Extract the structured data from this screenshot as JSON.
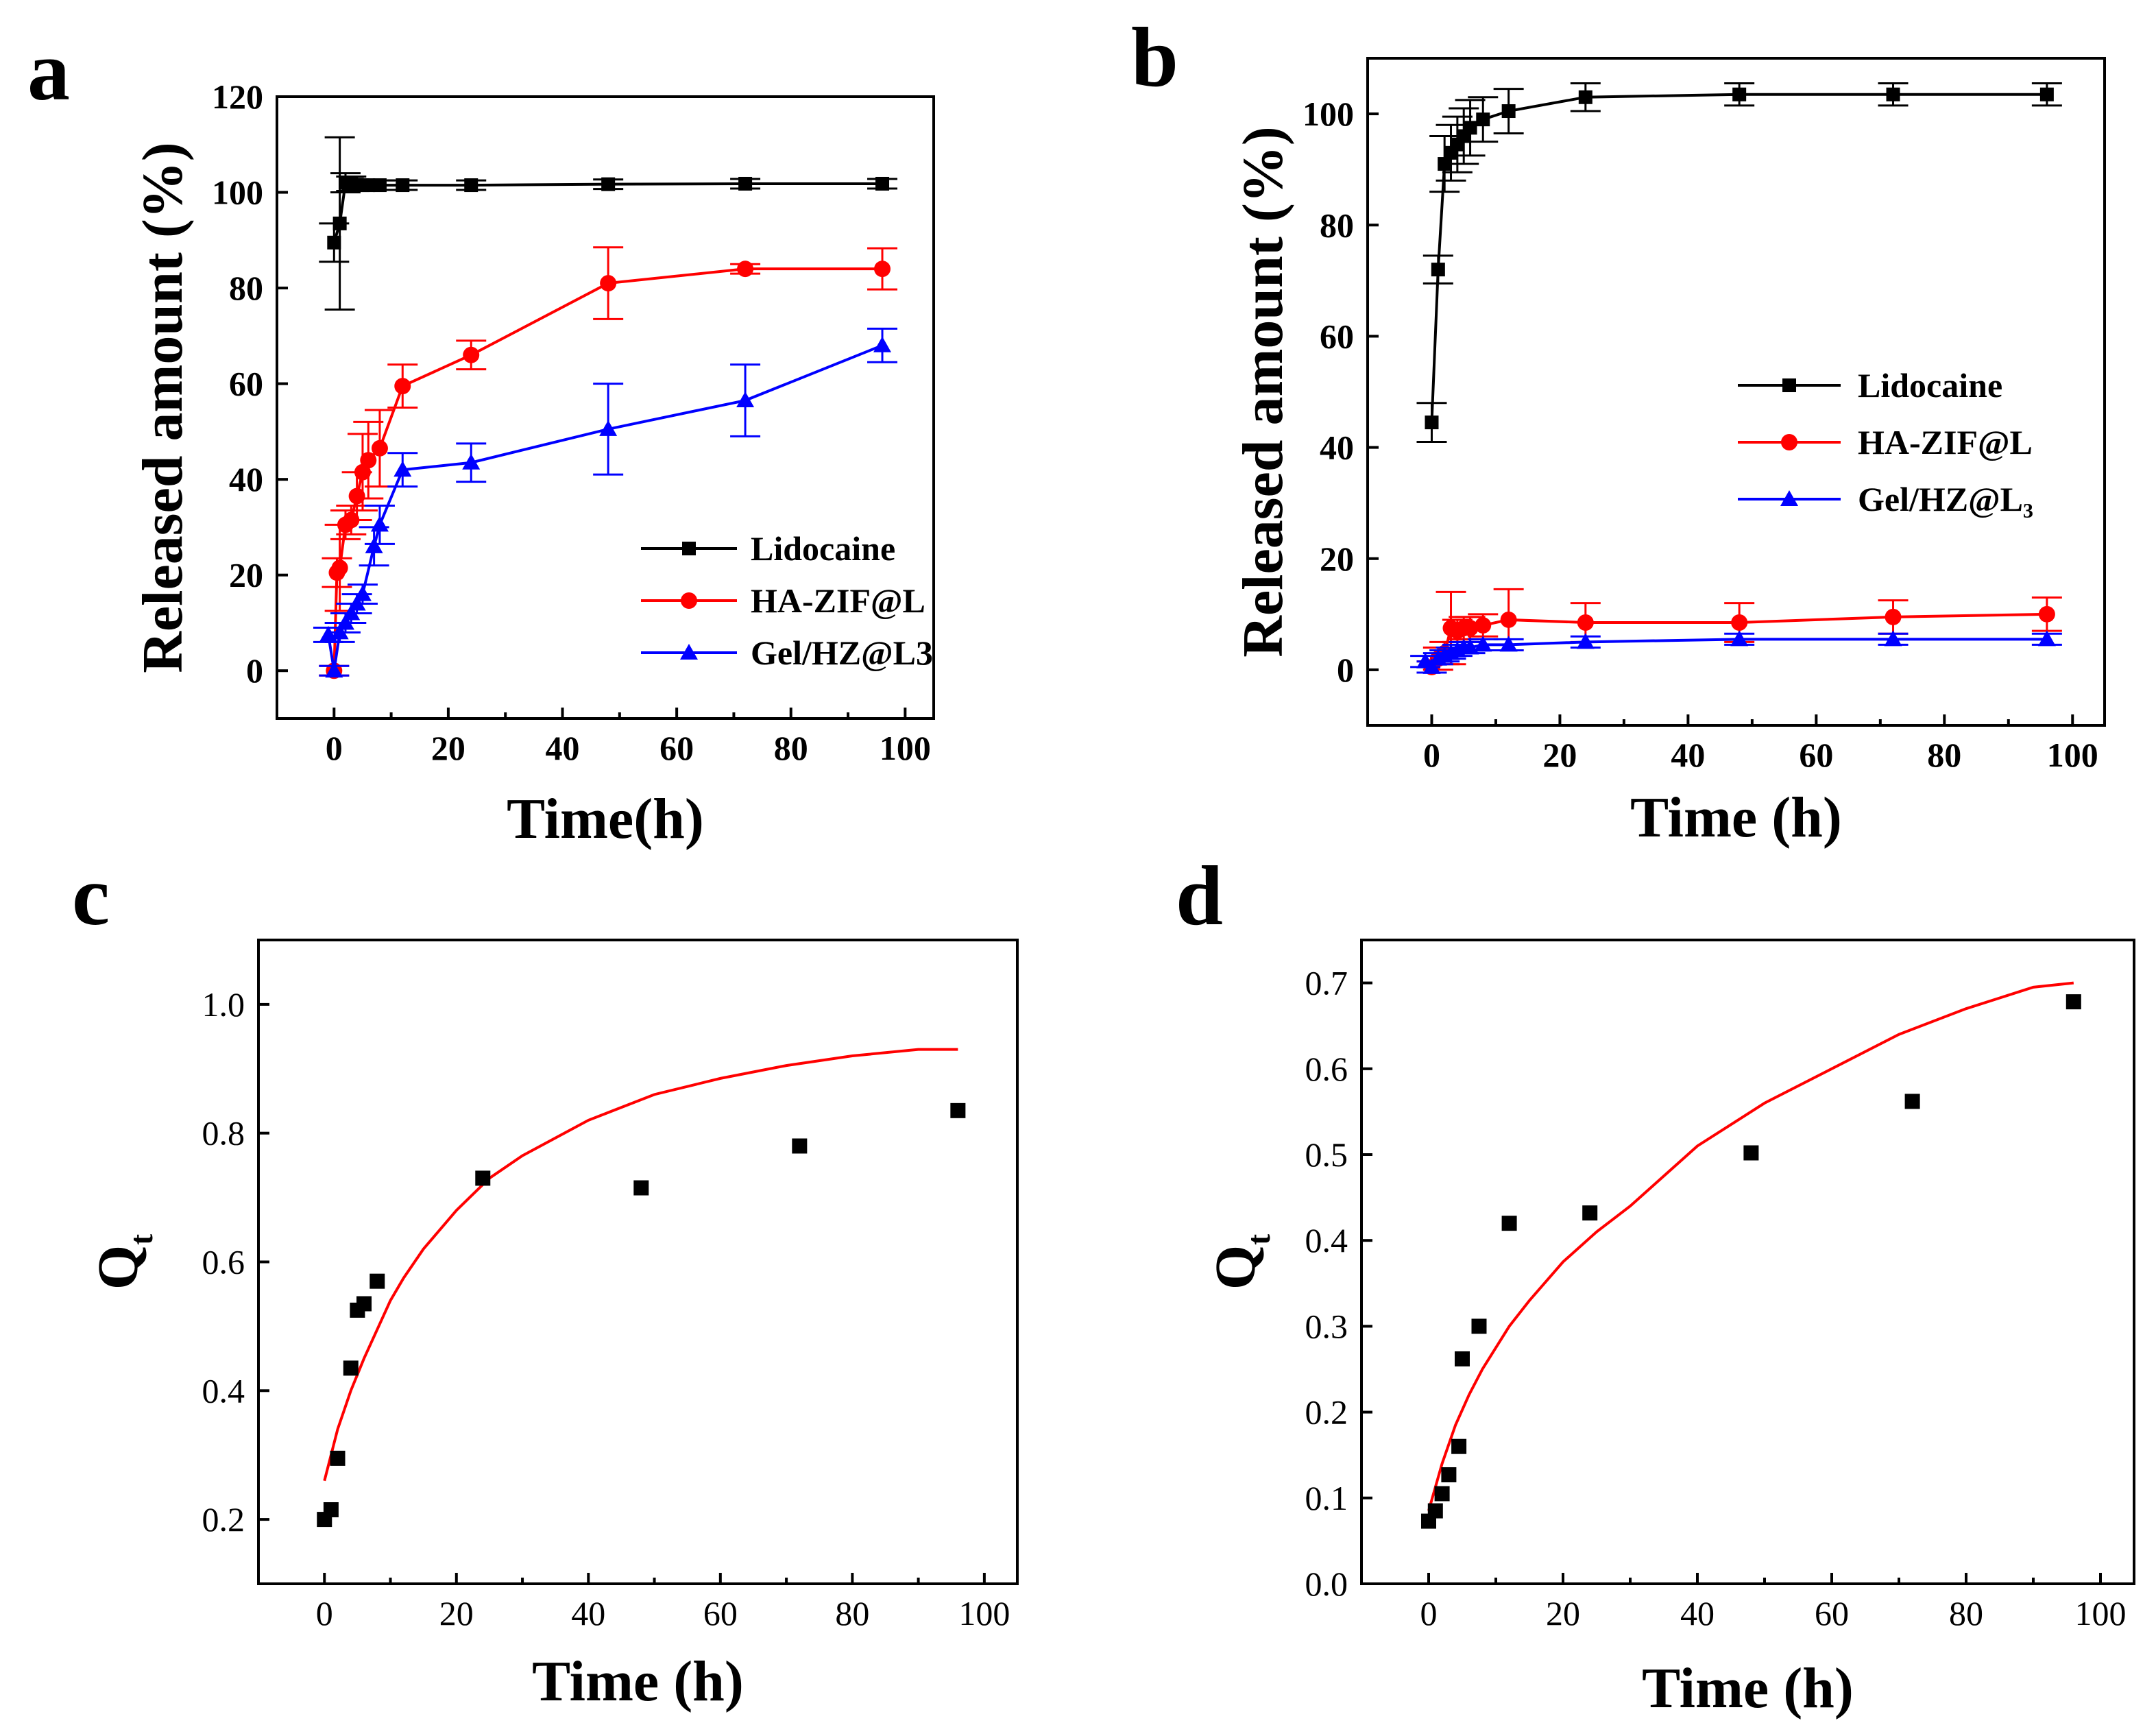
{
  "colors": {
    "black": "#000000",
    "red": "#ff0000",
    "blue": "#0000ff"
  },
  "chart_data": [
    {
      "panel": "a",
      "type": "line",
      "xlabel": "Time(h)",
      "ylabel": "Released amount (%)",
      "xlim": [
        -10,
        105
      ],
      "ylim": [
        -10,
        120
      ],
      "xticks": [
        0,
        20,
        40,
        60,
        80,
        100
      ],
      "yticks": [
        0,
        20,
        40,
        60,
        80,
        100,
        120
      ],
      "legend": "lower-right",
      "series": [
        {
          "name": "Lidocaine",
          "color": "black",
          "marker": "square",
          "x": [
            0,
            1,
            2,
            3,
            4,
            5,
            6,
            8,
            12,
            24,
            48,
            72,
            96
          ],
          "y": [
            89.5,
            93.5,
            102,
            101.8,
            101.6,
            101.5,
            101.5,
            101.5,
            101.5,
            101.5,
            101.7,
            101.8,
            101.8
          ],
          "err": [
            4,
            18,
            2,
            1.5,
            1,
            1,
            1,
            1,
            1,
            1,
            1,
            1,
            1
          ]
        },
        {
          "name": "HA-ZIF@L",
          "color": "red",
          "marker": "circle",
          "x": [
            0,
            0.5,
            1,
            2,
            3,
            4,
            5,
            6,
            8,
            12,
            24,
            48,
            72,
            96
          ],
          "y": [
            0,
            20.5,
            21.5,
            30.5,
            31.5,
            36.5,
            41.5,
            44,
            46.5,
            59.5,
            66,
            81,
            84,
            84
          ],
          "err": [
            1,
            3,
            9,
            3,
            3,
            5,
            8,
            8,
            8,
            4.5,
            3,
            7.5,
            1,
            4.3
          ]
        },
        {
          "name": "Gel/HZ@L3",
          "color": "blue",
          "marker": "triangle",
          "x": [
            -1,
            0,
            1,
            2,
            3,
            4,
            5,
            7,
            8,
            12,
            24,
            48,
            72,
            96
          ],
          "y": [
            7.5,
            0,
            8,
            10,
            12,
            14,
            16,
            26,
            30.5,
            42,
            43.5,
            50.5,
            56.5,
            68
          ],
          "err": [
            1.5,
            1,
            2,
            2,
            2,
            2,
            2,
            4,
            4,
            3.5,
            4,
            9.5,
            7.5,
            3.5
          ]
        }
      ]
    },
    {
      "panel": "b",
      "type": "line",
      "xlabel": "Time (h)",
      "ylabel": "Released amount (%)",
      "xlim": [
        -10,
        105
      ],
      "ylim": [
        -10,
        110
      ],
      "xticks": [
        0,
        20,
        40,
        60,
        80,
        100
      ],
      "yticks": [
        0,
        20,
        40,
        60,
        80,
        100
      ],
      "legend": "right",
      "series": [
        {
          "name": "Lidocaine",
          "color": "black",
          "marker": "square",
          "x": [
            0,
            1,
            2,
            3,
            4,
            5,
            6,
            8,
            12,
            24,
            48,
            72,
            96
          ],
          "y": [
            44.5,
            72,
            91,
            93,
            94.5,
            96,
            97.5,
            99,
            100.5,
            103,
            103.5,
            103.5,
            103.5
          ],
          "err": [
            3.5,
            2.5,
            5,
            5,
            5,
            5,
            5,
            4,
            4,
            2.5,
            2,
            2,
            2
          ]
        },
        {
          "name": "HA-ZIF@L",
          "color": "red",
          "marker": "circle",
          "x": [
            0,
            1,
            2,
            3,
            4,
            5,
            6,
            8,
            12,
            24,
            48,
            72,
            96
          ],
          "y": [
            0.5,
            2,
            3,
            7.5,
            7,
            7.5,
            7.5,
            8,
            9,
            8.5,
            8.5,
            9.5,
            10
          ],
          "err": [
            1,
            2,
            2,
            6.5,
            2,
            2,
            2,
            2,
            5.5,
            3.5,
            3.5,
            3,
            3
          ]
        },
        {
          "name": "Gel/HZ@L₃",
          "color": "blue",
          "marker": "triangle",
          "x": [
            -1,
            0,
            1,
            2,
            3,
            4,
            5,
            6,
            8,
            12,
            24,
            48,
            72,
            96
          ],
          "y": [
            1.5,
            0.5,
            2,
            2.5,
            3,
            3.5,
            4,
            4,
            4.5,
            4.5,
            5,
            5.5,
            5.5,
            5.5
          ],
          "err": [
            1,
            1,
            1,
            1,
            1,
            1,
            1,
            1,
            1,
            1,
            1,
            1,
            1,
            1
          ]
        }
      ]
    },
    {
      "panel": "c",
      "type": "scatter",
      "xlabel": "Time (h)",
      "ylabel": "Q",
      "ylabel_sub": "t",
      "xlim": [
        -10,
        105
      ],
      "ylim": [
        0.1,
        1.1
      ],
      "xticks": [
        0,
        20,
        40,
        60,
        80,
        100
      ],
      "yticks": [
        0.2,
        0.4,
        0.6,
        0.8,
        1.0
      ],
      "ytick_labels": [
        "0.2",
        "0.4",
        "0.6",
        "0.8",
        "1.0"
      ],
      "points": {
        "x": [
          0,
          1,
          2,
          4,
          5,
          6,
          8,
          24,
          48,
          72,
          96
        ],
        "y": [
          0.2,
          0.215,
          0.295,
          0.435,
          0.525,
          0.535,
          0.57,
          0.73,
          0.715,
          0.78,
          0.835
        ]
      },
      "fit": {
        "color": "red",
        "x": [
          0,
          2,
          4,
          6,
          8,
          10,
          12,
          15,
          20,
          25,
          30,
          40,
          50,
          60,
          70,
          80,
          90,
          96
        ],
        "y": [
          0.26,
          0.34,
          0.4,
          0.45,
          0.495,
          0.54,
          0.575,
          0.62,
          0.68,
          0.73,
          0.765,
          0.82,
          0.86,
          0.885,
          0.905,
          0.92,
          0.93,
          0.93
        ]
      }
    },
    {
      "panel": "d",
      "type": "scatter",
      "xlabel": "Time (h)",
      "ylabel": "Q",
      "ylabel_sub": "t",
      "xlim": [
        -10,
        105
      ],
      "ylim": [
        0,
        0.75
      ],
      "xticks": [
        0,
        20,
        40,
        60,
        80,
        100
      ],
      "yticks": [
        0,
        0.1,
        0.2,
        0.3,
        0.4,
        0.5,
        0.6,
        0.7
      ],
      "ytick_labels": [
        "0.0",
        "0.1",
        "0.2",
        "0.3",
        "0.4",
        "0.5",
        "0.6",
        "0.7"
      ],
      "points": {
        "x": [
          0,
          1,
          2,
          3,
          4.5,
          5,
          7.5,
          12,
          24,
          48,
          72,
          96
        ],
        "y": [
          0.073,
          0.085,
          0.105,
          0.127,
          0.16,
          0.262,
          0.3,
          0.42,
          0.432,
          0.502,
          0.562,
          0.678
        ]
      },
      "fit": {
        "color": "red",
        "x": [
          0,
          2,
          4,
          6,
          8,
          10,
          12,
          15,
          20,
          25,
          30,
          40,
          50,
          60,
          70,
          80,
          90,
          96
        ],
        "y": [
          0.085,
          0.14,
          0.185,
          0.22,
          0.25,
          0.275,
          0.3,
          0.33,
          0.375,
          0.41,
          0.44,
          0.51,
          0.56,
          0.6,
          0.64,
          0.67,
          0.695,
          0.7
        ]
      }
    }
  ]
}
